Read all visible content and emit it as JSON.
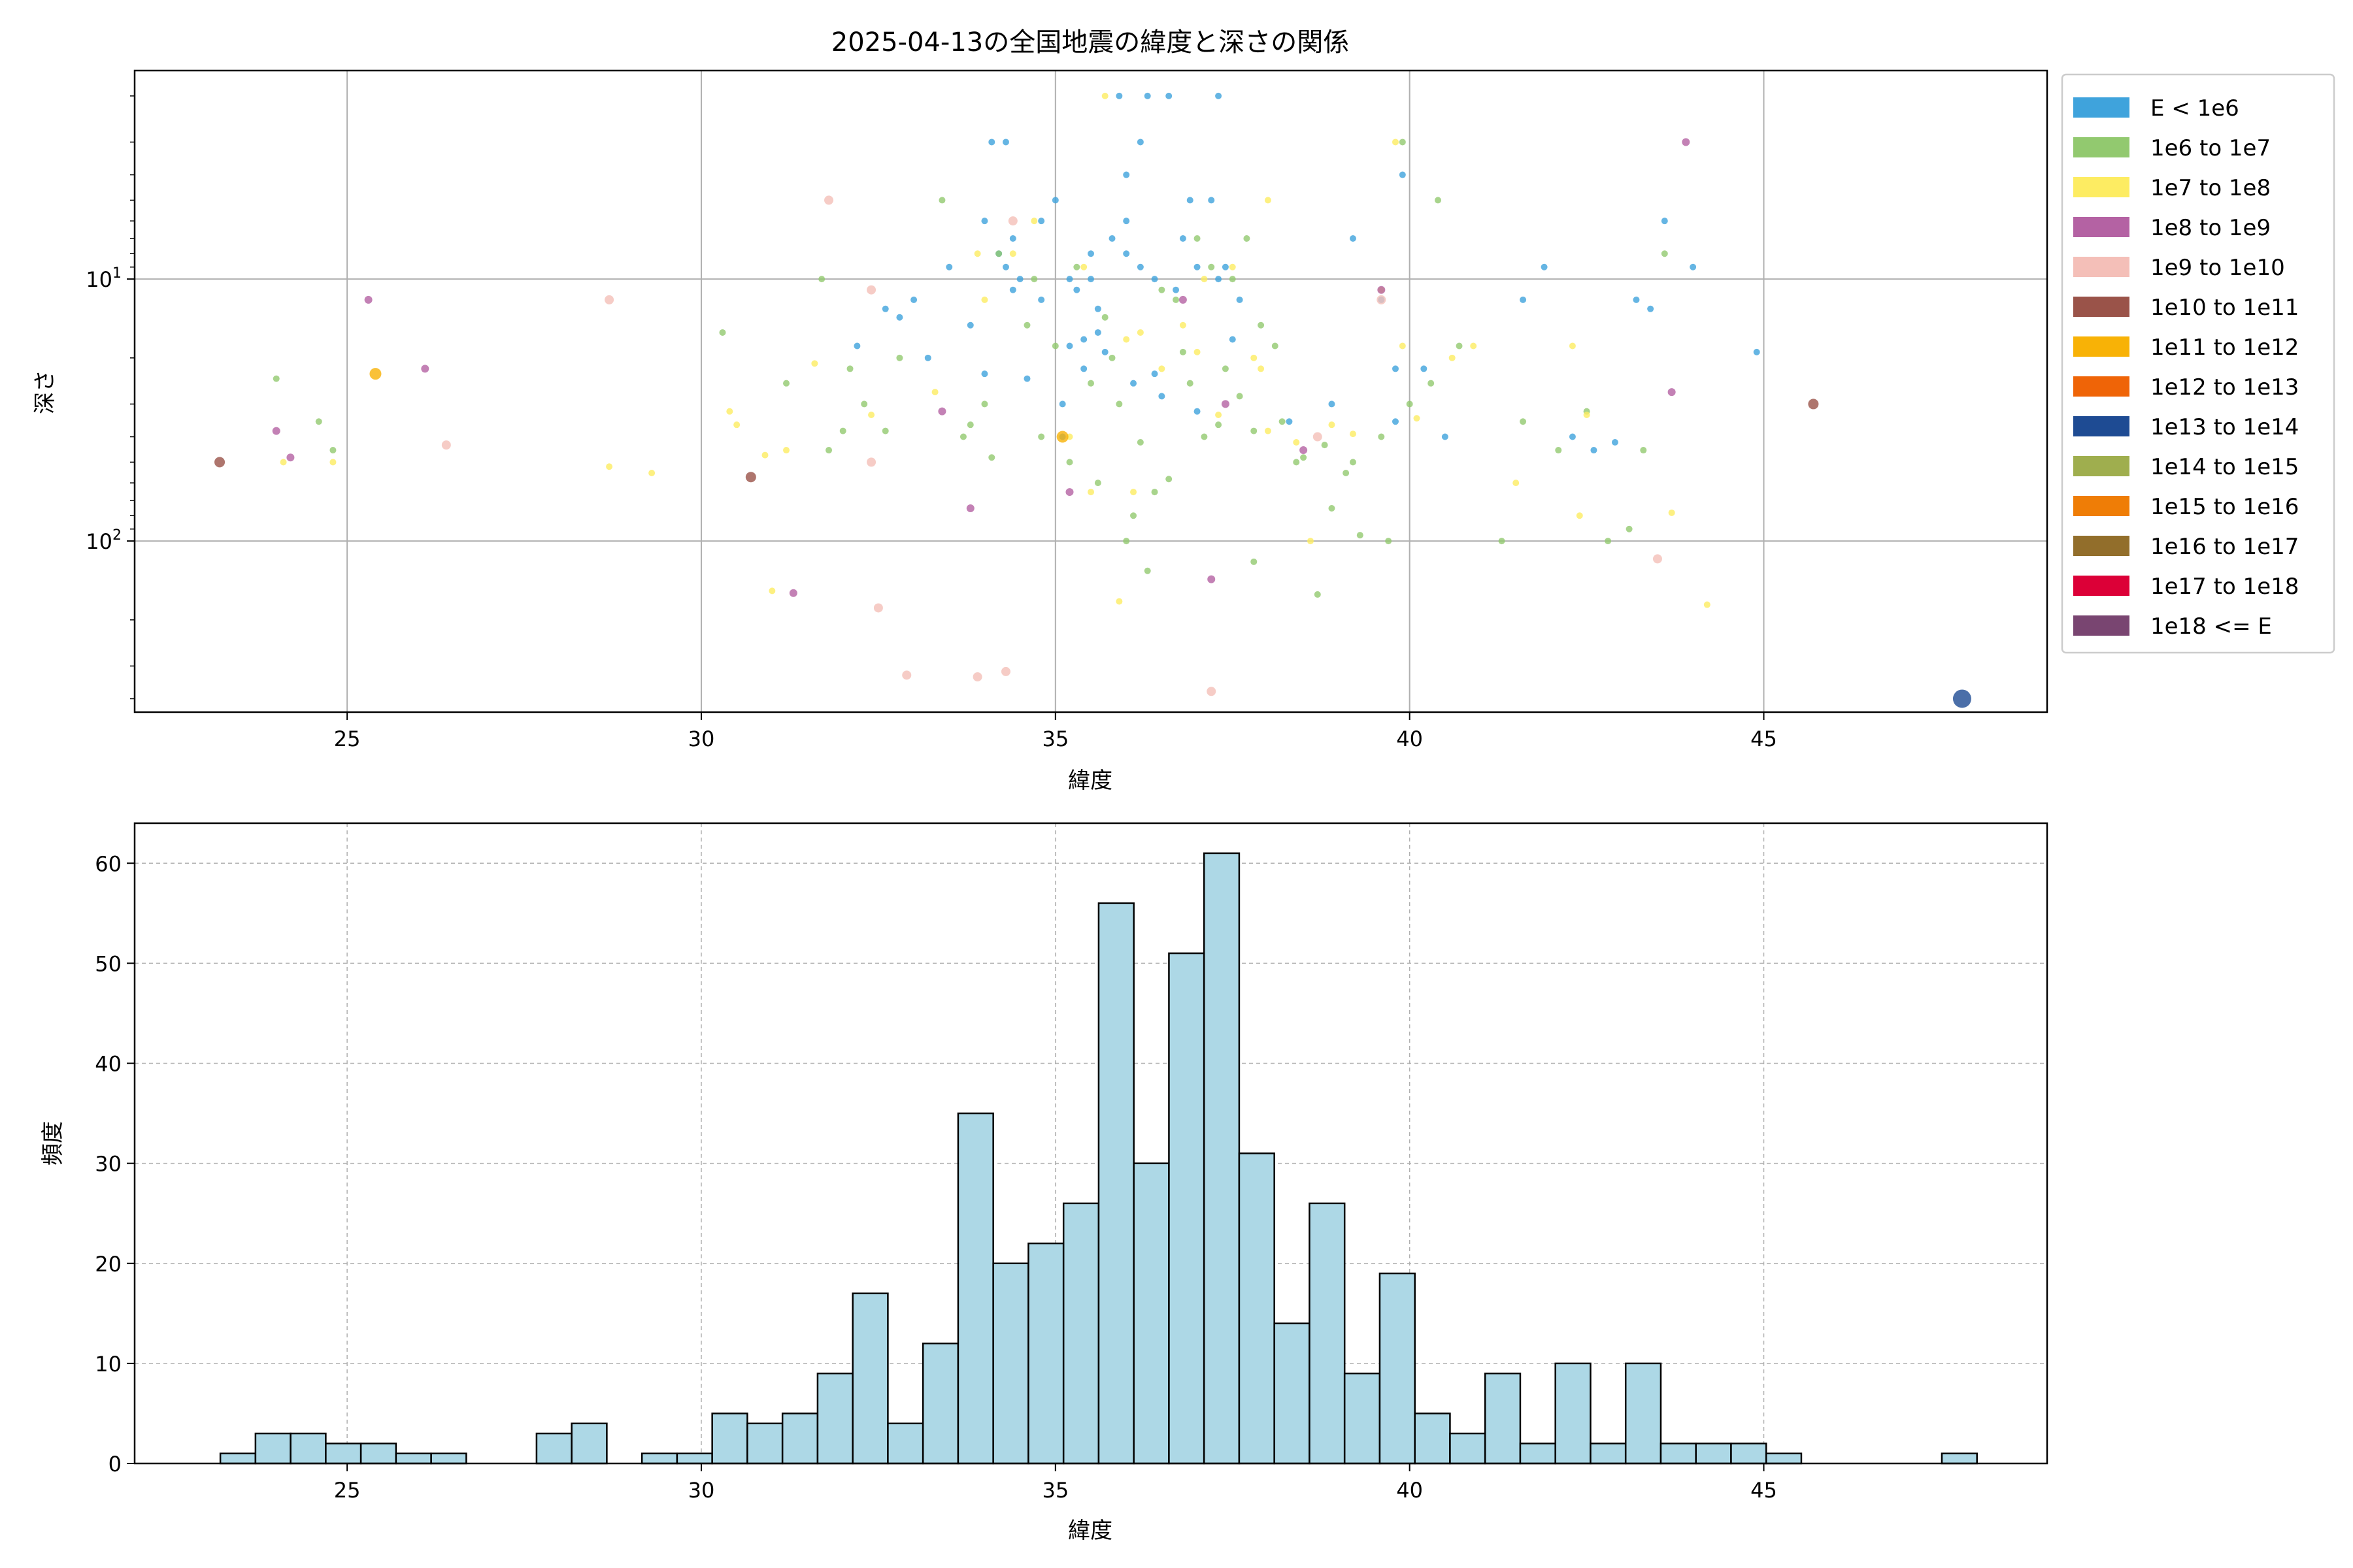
{
  "chart_data": [
    {
      "type": "scatter",
      "title": "2025-04-13の全国地震の緯度と深さの関係",
      "xlabel": "緯度",
      "ylabel": "深さ",
      "xlim": [
        22.0,
        49.0
      ],
      "ylim": [
        1.6,
        450
      ],
      "yscale": "log",
      "y_inverted": true,
      "grid": true,
      "xticks": [
        25,
        30,
        35,
        40,
        45
      ],
      "yticks": [
        {
          "value": 10,
          "label": "10^1"
        },
        {
          "value": 100,
          "label": "10^2"
        }
      ],
      "legend_position": "outside-right",
      "legend": [
        {
          "label": "E < 1e6",
          "color": "#3fa3dc"
        },
        {
          "label": "1e6 to 1e7",
          "color": "#92c96f"
        },
        {
          "label": "1e7 to 1e8",
          "color": "#fdec62"
        },
        {
          "label": "1e8 to 1e9",
          "color": "#b462a3"
        },
        {
          "label": "1e9 to 1e10",
          "color": "#f4bfb8"
        },
        {
          "label": "1e10 to 1e11",
          "color": "#9a5349"
        },
        {
          "label": "1e11 to 1e12",
          "color": "#f8b206"
        },
        {
          "label": "1e12 to 1e13",
          "color": "#ef6407"
        },
        {
          "label": "1e13 to 1e14",
          "color": "#1e4b93"
        },
        {
          "label": "1e14 to 1e15",
          "color": "#9fae4e"
        },
        {
          "label": "1e15 to 1e16",
          "color": "#ef7d06"
        },
        {
          "label": "1e16 to 1e17",
          "color": "#926e2b"
        },
        {
          "label": "1e17 to 1e18",
          "color": "#dc0037"
        },
        {
          "label": "1e18 <= E",
          "color": "#794571"
        }
      ],
      "series": [
        {
          "name": "E < 1e6",
          "size": 5,
          "points": [
            [
              34.0,
              6
            ],
            [
              34.2,
              8
            ],
            [
              34.5,
              10
            ],
            [
              34.8,
              12
            ],
            [
              35.2,
              10
            ],
            [
              35.5,
              8
            ],
            [
              35.8,
              7
            ],
            [
              36.0,
              6
            ],
            [
              36.2,
              9
            ],
            [
              36.4,
              10
            ],
            [
              36.7,
              11
            ],
            [
              37.0,
              9
            ],
            [
              37.3,
              10
            ],
            [
              37.6,
              12
            ],
            [
              34.1,
              3
            ],
            [
              34.3,
              3
            ],
            [
              35.9,
              2
            ],
            [
              36.3,
              2
            ],
            [
              36.6,
              2
            ],
            [
              37.3,
              2
            ],
            [
              34.4,
              7
            ],
            [
              35.0,
              5
            ],
            [
              35.3,
              11
            ],
            [
              35.6,
              13
            ],
            [
              33.5,
              9
            ],
            [
              33.8,
              15
            ],
            [
              32.2,
              18
            ],
            [
              32.8,
              14
            ],
            [
              33.0,
              12
            ],
            [
              32.6,
              13
            ],
            [
              36.8,
              7
            ],
            [
              36.0,
              4
            ],
            [
              35.7,
              19
            ],
            [
              35.4,
              22
            ],
            [
              35.6,
              16
            ],
            [
              36.1,
              25
            ],
            [
              34.6,
              24
            ],
            [
              35.1,
              30
            ],
            [
              36.5,
              28
            ],
            [
              37.5,
              17
            ],
            [
              37.0,
              32
            ],
            [
              38.9,
              30
            ],
            [
              39.8,
              22
            ],
            [
              40.2,
              22
            ],
            [
              40.5,
              40
            ],
            [
              39.6,
              12
            ],
            [
              39.2,
              7
            ],
            [
              39.9,
              4
            ],
            [
              41.6,
              12
            ],
            [
              41.9,
              9
            ],
            [
              43.2,
              12
            ],
            [
              43.4,
              13
            ],
            [
              43.6,
              6
            ],
            [
              44.0,
              9
            ],
            [
              44.9,
              19
            ],
            [
              42.3,
              40
            ],
            [
              42.6,
              45
            ],
            [
              42.9,
              42
            ],
            [
              38.3,
              35
            ],
            [
              39.8,
              35
            ],
            [
              35.2,
              18
            ],
            [
              36.9,
              5
            ],
            [
              37.2,
              5
            ],
            [
              36.2,
              3
            ],
            [
              34.8,
              6
            ],
            [
              35.4,
              17
            ],
            [
              36.4,
              23
            ],
            [
              35.1,
              40
            ],
            [
              34.4,
              11
            ],
            [
              33.2,
              20
            ],
            [
              34.3,
              9
            ],
            [
              36.0,
              8
            ],
            [
              35.5,
              10
            ],
            [
              37.4,
              9
            ],
            [
              34.0,
              23
            ]
          ]
        },
        {
          "name": "1e6 to 1e7",
          "size": 5,
          "points": [
            [
              24.0,
              24
            ],
            [
              24.8,
              45
            ],
            [
              24.6,
              35
            ],
            [
              30.3,
              16
            ],
            [
              31.2,
              25
            ],
            [
              31.8,
              45
            ],
            [
              32.1,
              22
            ],
            [
              32.3,
              30
            ],
            [
              32.6,
              38
            ],
            [
              32.8,
              20
            ],
            [
              33.4,
              5
            ],
            [
              33.7,
              40
            ],
            [
              34.0,
              30
            ],
            [
              34.2,
              8
            ],
            [
              34.6,
              15
            ],
            [
              35.0,
              18
            ],
            [
              35.2,
              50
            ],
            [
              35.6,
              60
            ],
            [
              35.9,
              30
            ],
            [
              36.1,
              80
            ],
            [
              36.4,
              65
            ],
            [
              36.6,
              58
            ],
            [
              36.9,
              25
            ],
            [
              37.1,
              40
            ],
            [
              37.4,
              22
            ],
            [
              37.8,
              38
            ],
            [
              38.2,
              35
            ],
            [
              38.5,
              48
            ],
            [
              38.9,
              75
            ],
            [
              39.2,
              50
            ],
            [
              39.6,
              40
            ],
            [
              40.0,
              30
            ],
            [
              40.4,
              5
            ],
            [
              40.7,
              18
            ],
            [
              41.3,
              100
            ],
            [
              41.6,
              35
            ],
            [
              42.1,
              45
            ],
            [
              42.5,
              32
            ],
            [
              42.8,
              100
            ],
            [
              43.1,
              90
            ],
            [
              43.3,
              45
            ],
            [
              43.6,
              8
            ],
            [
              36.0,
              100
            ],
            [
              36.3,
              130
            ],
            [
              37.8,
              120
            ],
            [
              38.7,
              160
            ],
            [
              39.3,
              95
            ],
            [
              39.7,
              100
            ],
            [
              34.8,
              40
            ],
            [
              35.8,
              20
            ],
            [
              36.7,
              12
            ],
            [
              37.2,
              9
            ],
            [
              37.5,
              10
            ],
            [
              37.9,
              15
            ],
            [
              38.1,
              18
            ],
            [
              33.8,
              36
            ],
            [
              34.1,
              48
            ],
            [
              35.5,
              25
            ],
            [
              36.8,
              19
            ],
            [
              37.6,
              28
            ],
            [
              37.0,
              7
            ],
            [
              36.5,
              11
            ],
            [
              35.3,
              9
            ],
            [
              34.7,
              10
            ],
            [
              37.7,
              7
            ],
            [
              38.8,
              43
            ],
            [
              39.1,
              55
            ],
            [
              36.2,
              42
            ],
            [
              32.0,
              38
            ],
            [
              31.7,
              10
            ],
            [
              40.3,
              25
            ],
            [
              39.9,
              3
            ],
            [
              38.4,
              50
            ],
            [
              37.3,
              36
            ],
            [
              35.7,
              14
            ]
          ]
        },
        {
          "name": "1e7 to 1e8",
          "size": 5,
          "points": [
            [
              24.1,
              50
            ],
            [
              24.8,
              50
            ],
            [
              28.7,
              52
            ],
            [
              29.3,
              55
            ],
            [
              30.4,
              32
            ],
            [
              30.5,
              36
            ],
            [
              30.9,
              47
            ],
            [
              31.2,
              45
            ],
            [
              31.0,
              155
            ],
            [
              31.6,
              21
            ],
            [
              32.4,
              33
            ],
            [
              33.3,
              27
            ],
            [
              34.0,
              12
            ],
            [
              34.4,
              8
            ],
            [
              35.2,
              40
            ],
            [
              35.5,
              65
            ],
            [
              35.9,
              170
            ],
            [
              36.2,
              16
            ],
            [
              36.5,
              22
            ],
            [
              37.0,
              19
            ],
            [
              37.3,
              33
            ],
            [
              37.8,
              20
            ],
            [
              38.0,
              38
            ],
            [
              38.6,
              100
            ],
            [
              38.9,
              36
            ],
            [
              39.6,
              11
            ],
            [
              39.9,
              18
            ],
            [
              40.1,
              34
            ],
            [
              40.6,
              20
            ],
            [
              40.9,
              18
            ],
            [
              41.5,
              60
            ],
            [
              42.3,
              18
            ],
            [
              42.4,
              80
            ],
            [
              42.5,
              33
            ],
            [
              43.7,
              78
            ],
            [
              44.2,
              175
            ],
            [
              35.7,
              2
            ],
            [
              38.0,
              5
            ],
            [
              39.8,
              3
            ],
            [
              36.0,
              17
            ],
            [
              37.5,
              9
            ],
            [
              36.8,
              15
            ],
            [
              38.4,
              42
            ],
            [
              39.2,
              39
            ],
            [
              36.1,
              65
            ],
            [
              37.1,
              10
            ],
            [
              37.9,
              22
            ],
            [
              33.9,
              8
            ],
            [
              34.7,
              6
            ],
            [
              35.4,
              9
            ]
          ]
        },
        {
          "name": "1e8 to 1e9",
          "size": 6,
          "points": [
            [
              24.0,
              38
            ],
            [
              24.2,
              48
            ],
            [
              25.3,
              12
            ],
            [
              26.1,
              22
            ],
            [
              31.3,
              158
            ],
            [
              33.4,
              32
            ],
            [
              33.8,
              75
            ],
            [
              36.8,
              12
            ],
            [
              37.2,
              140
            ],
            [
              39.6,
              11
            ],
            [
              43.7,
              27
            ],
            [
              43.9,
              3
            ],
            [
              35.2,
              65
            ],
            [
              37.4,
              30
            ],
            [
              38.5,
              45
            ]
          ]
        },
        {
          "name": "1e9 to 1e10",
          "size": 7,
          "points": [
            [
              26.4,
              43
            ],
            [
              28.7,
              12
            ],
            [
              31.8,
              5
            ],
            [
              32.4,
              11
            ],
            [
              32.4,
              50
            ],
            [
              32.5,
              180
            ],
            [
              32.9,
              325
            ],
            [
              33.9,
              330
            ],
            [
              34.4,
              6
            ],
            [
              34.3,
              315
            ],
            [
              37.2,
              375
            ],
            [
              38.7,
              40
            ],
            [
              39.6,
              12
            ],
            [
              43.5,
              117
            ]
          ]
        },
        {
          "name": "1e10 to 1e11",
          "size": 8,
          "points": [
            [
              23.2,
              50
            ],
            [
              30.7,
              57
            ],
            [
              45.7,
              30
            ]
          ]
        },
        {
          "name": "1e11 to 1e12",
          "size": 9,
          "points": [
            [
              25.4,
              23
            ],
            [
              35.1,
              40
            ]
          ]
        },
        {
          "name": "1e13 to 1e14",
          "size": 14,
          "points": [
            [
              47.8,
              400
            ]
          ]
        }
      ]
    },
    {
      "type": "bar",
      "title": "",
      "xlabel": "緯度",
      "ylabel": "頻度",
      "xlim": [
        22.0,
        49.0
      ],
      "ylim": [
        0,
        64
      ],
      "xticks": [
        25,
        30,
        35,
        40,
        45
      ],
      "yticks": [
        0,
        10,
        20,
        30,
        40,
        50,
        60
      ],
      "grid": true,
      "color": "#add8e6",
      "edgecolor": "#000000",
      "bin_start": 23.21,
      "bin_width": 0.496,
      "values": [
        1,
        3,
        3,
        2,
        2,
        1,
        1,
        0,
        0,
        3,
        4,
        0,
        1,
        1,
        5,
        4,
        5,
        9,
        17,
        4,
        12,
        35,
        20,
        22,
        26,
        56,
        30,
        51,
        61,
        31,
        14,
        26,
        9,
        19,
        5,
        3,
        9,
        2,
        10,
        2,
        10,
        2,
        2,
        2,
        1,
        0,
        0,
        0,
        0,
        1
      ]
    }
  ]
}
